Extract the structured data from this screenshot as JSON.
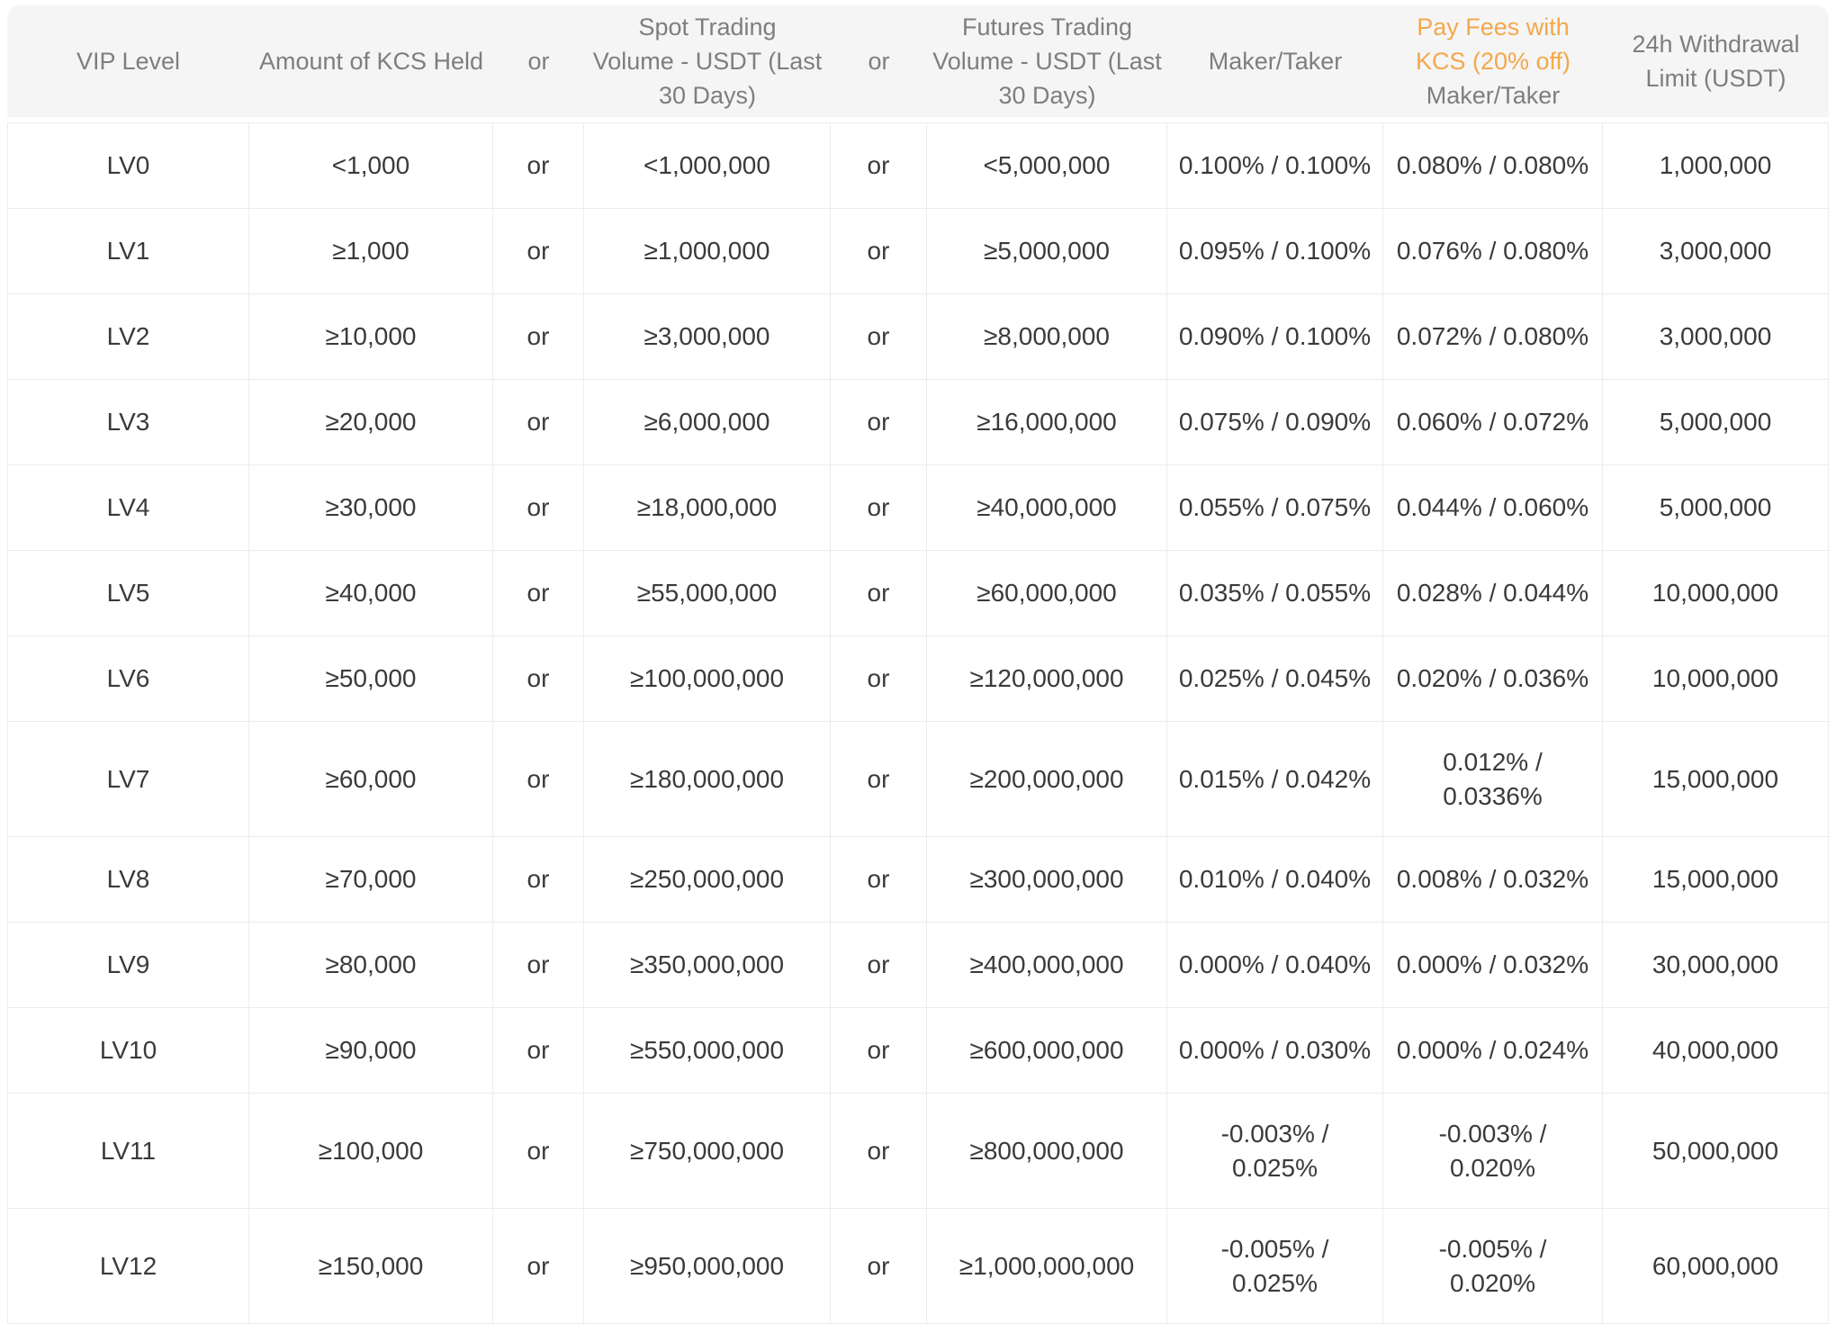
{
  "table": {
    "accent_color": "#F3A84A",
    "header_bg": "#F5F5F6",
    "header_text_color": "#7E7E7E",
    "body_text_color": "#3A3A3A",
    "border_color": "#ECECEC",
    "columns": [
      {
        "id": "vip-level",
        "label": "VIP Level"
      },
      {
        "id": "kcs-held",
        "label": "Amount of KCS Held"
      },
      {
        "id": "or-1",
        "label": "or"
      },
      {
        "id": "spot-volume",
        "label": "Spot Trading\nVolume - USDT (Last\n30 Days)"
      },
      {
        "id": "or-2",
        "label": "or"
      },
      {
        "id": "futures-volume",
        "label": "Futures Trading\nVolume - USDT (Last\n30 Days)"
      },
      {
        "id": "maker-taker",
        "label": "Maker/Taker"
      },
      {
        "id": "kcs-pay-discount",
        "accent_label": "Pay Fees with\nKCS (20% off)",
        "label": "Maker/Taker"
      },
      {
        "id": "withdrawal-limit",
        "label": "24h Withdrawal\nLimit (USDT)"
      }
    ],
    "rows": [
      [
        "LV0",
        "<1,000",
        "or",
        "<1,000,000",
        "or",
        "<5,000,000",
        "0.100% / 0.100%",
        "0.080% / 0.080%",
        "1,000,000"
      ],
      [
        "LV1",
        "≥1,000",
        "or",
        "≥1,000,000",
        "or",
        "≥5,000,000",
        "0.095% / 0.100%",
        "0.076% / 0.080%",
        "3,000,000"
      ],
      [
        "LV2",
        "≥10,000",
        "or",
        "≥3,000,000",
        "or",
        "≥8,000,000",
        "0.090% / 0.100%",
        "0.072% / 0.080%",
        "3,000,000"
      ],
      [
        "LV3",
        "≥20,000",
        "or",
        "≥6,000,000",
        "or",
        "≥16,000,000",
        "0.075% / 0.090%",
        "0.060% / 0.072%",
        "5,000,000"
      ],
      [
        "LV4",
        "≥30,000",
        "or",
        "≥18,000,000",
        "or",
        "≥40,000,000",
        "0.055% / 0.075%",
        "0.044% / 0.060%",
        "5,000,000"
      ],
      [
        "LV5",
        "≥40,000",
        "or",
        "≥55,000,000",
        "or",
        "≥60,000,000",
        "0.035% / 0.055%",
        "0.028% / 0.044%",
        "10,000,000"
      ],
      [
        "LV6",
        "≥50,000",
        "or",
        "≥100,000,000",
        "or",
        "≥120,000,000",
        "0.025% / 0.045%",
        "0.020% / 0.036%",
        "10,000,000"
      ],
      [
        "LV7",
        "≥60,000",
        "or",
        "≥180,000,000",
        "or",
        "≥200,000,000",
        "0.015% / 0.042%",
        "0.012% /\n0.0336%",
        "15,000,000"
      ],
      [
        "LV8",
        "≥70,000",
        "or",
        "≥250,000,000",
        "or",
        "≥300,000,000",
        "0.010% / 0.040%",
        "0.008% / 0.032%",
        "15,000,000"
      ],
      [
        "LV9",
        "≥80,000",
        "or",
        "≥350,000,000",
        "or",
        "≥400,000,000",
        "0.000% / 0.040%",
        "0.000% / 0.032%",
        "30,000,000"
      ],
      [
        "LV10",
        "≥90,000",
        "or",
        "≥550,000,000",
        "or",
        "≥600,000,000",
        "0.000% / 0.030%",
        "0.000% / 0.024%",
        "40,000,000"
      ],
      [
        "LV11",
        "≥100,000",
        "or",
        "≥750,000,000",
        "or",
        "≥800,000,000",
        "-0.003% /\n0.025%",
        "-0.003% /\n0.020%",
        "50,000,000"
      ],
      [
        "LV12",
        "≥150,000",
        "or",
        "≥950,000,000",
        "or",
        "≥1,000,000,000",
        "-0.005% /\n0.025%",
        "-0.005% /\n0.020%",
        "60,000,000"
      ]
    ]
  }
}
